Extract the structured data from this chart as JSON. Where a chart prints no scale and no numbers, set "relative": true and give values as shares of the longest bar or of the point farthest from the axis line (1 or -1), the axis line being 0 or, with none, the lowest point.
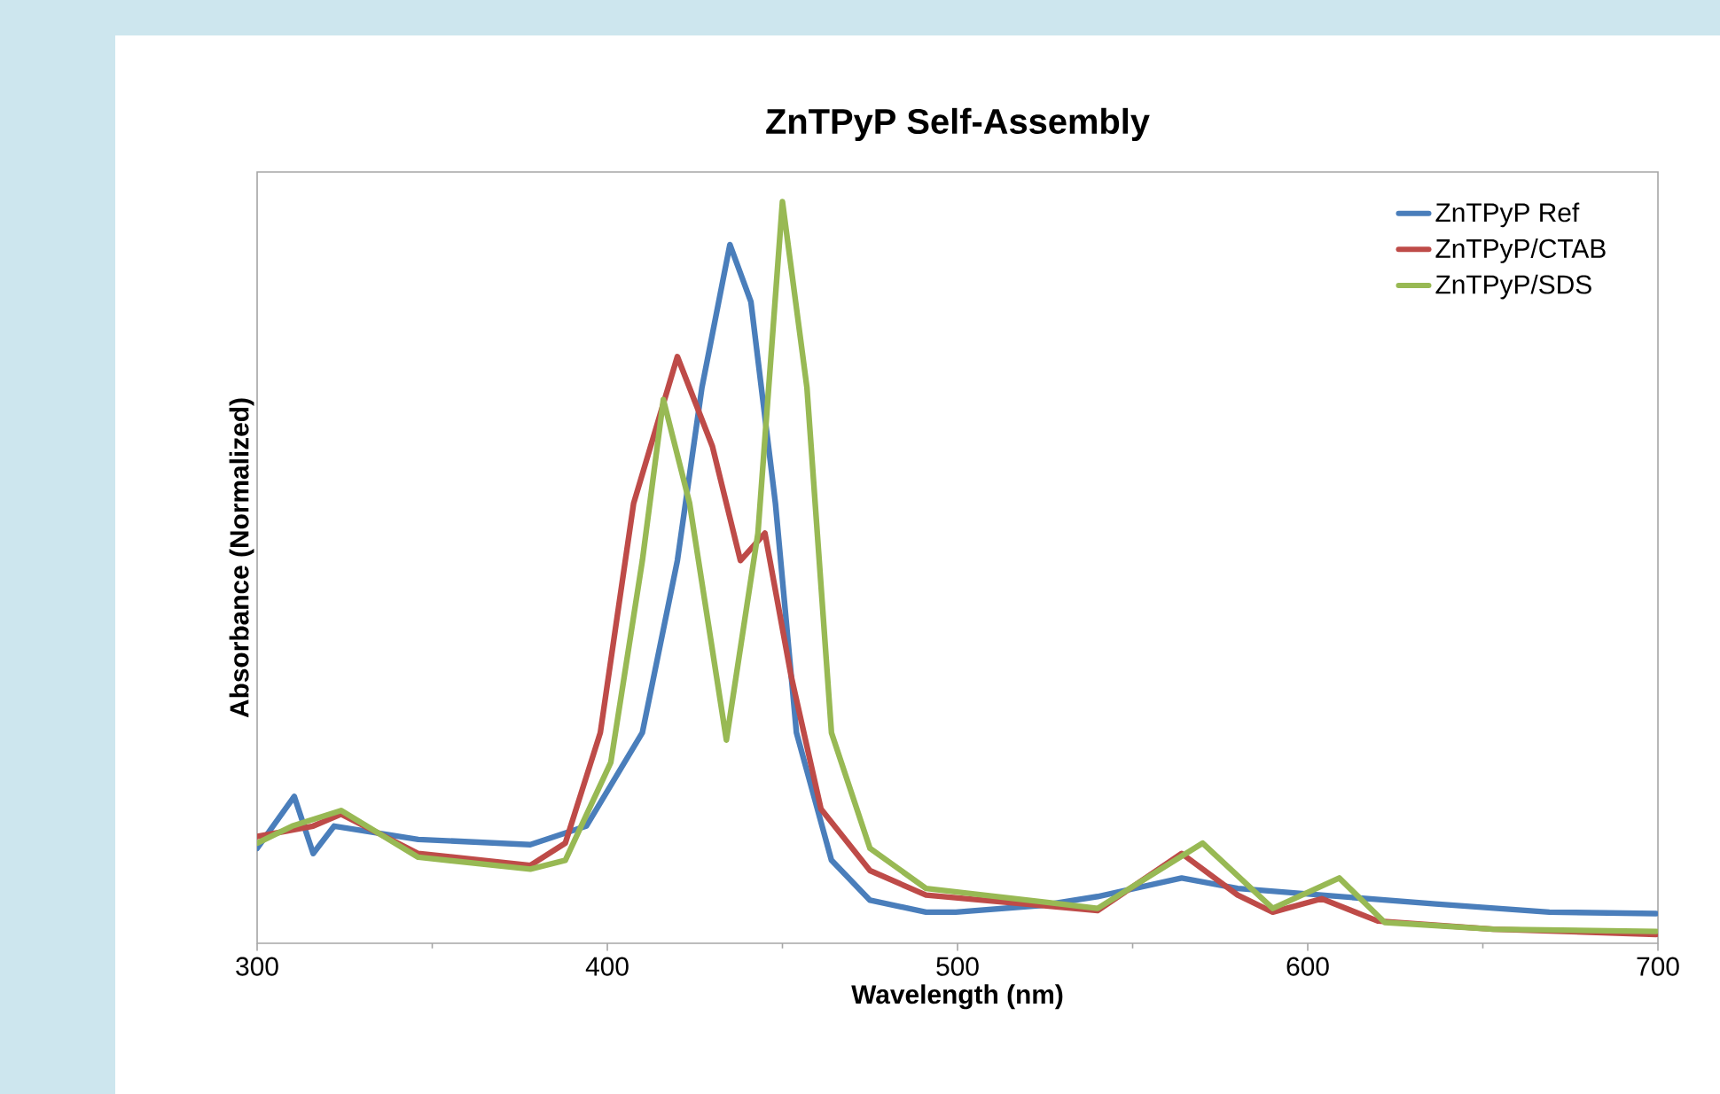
{
  "chart_data": {
    "type": "line",
    "title": "ZnTPyP Self-Assembly",
    "xlabel": "Wavelength (nm)",
    "ylabel": "Absorbance (Normalized)",
    "relative": true,
    "xlim": [
      300,
      700
    ],
    "xticks": [
      300,
      400,
      500,
      600,
      700
    ],
    "legend": "top right",
    "marker": "none",
    "line_style": "solid",
    "grid": false,
    "series": [
      {
        "name": "ZnTPyP Ref",
        "color": "#4a7ebb",
        "x": [
          300,
          310.6,
          316,
          322,
          346,
          378,
          394,
          410,
          420,
          427,
          435,
          441,
          448,
          454,
          464,
          475,
          491,
          499.5,
          524,
          540,
          564,
          580,
          604,
          636.5,
          669,
          699.5
        ],
        "values": [
          0.128,
          0.198,
          0.121,
          0.158,
          0.14,
          0.133,
          0.158,
          0.284,
          0.516,
          0.749,
          0.942,
          0.865,
          0.593,
          0.284,
          0.112,
          0.058,
          0.042,
          0.042,
          0.051,
          0.063,
          0.088,
          0.074,
          0.065,
          0.053,
          0.042,
          0.04
        ]
      },
      {
        "name": "ZnTPyP/CTAB",
        "color": "#be4b48",
        "x": [
          300,
          316,
          324,
          346,
          378,
          388,
          398,
          407.5,
          420,
          430,
          438,
          445,
          452.5,
          461,
          475,
          491,
          524,
          540,
          564,
          580,
          590,
          604,
          620,
          653,
          699.5
        ],
        "values": [
          0.144,
          0.158,
          0.174,
          0.121,
          0.105,
          0.135,
          0.284,
          0.593,
          0.791,
          0.67,
          0.516,
          0.553,
          0.36,
          0.181,
          0.098,
          0.065,
          0.051,
          0.044,
          0.121,
          0.065,
          0.042,
          0.06,
          0.03,
          0.019,
          0.012
        ]
      },
      {
        "name": "ZnTPyP/SDS",
        "color": "#98b954",
        "x": [
          300,
          310,
          324,
          346,
          378,
          388,
          401,
          410,
          416,
          423.5,
          434,
          443,
          450,
          457,
          464,
          475,
          491,
          524,
          540,
          570,
          590,
          609,
          622,
          653,
          699.5
        ],
        "values": [
          0.135,
          0.158,
          0.179,
          0.116,
          0.1,
          0.112,
          0.244,
          0.516,
          0.733,
          0.593,
          0.274,
          0.553,
          1.0,
          0.749,
          0.284,
          0.128,
          0.074,
          0.056,
          0.047,
          0.135,
          0.047,
          0.088,
          0.028,
          0.019,
          0.016
        ]
      }
    ]
  }
}
